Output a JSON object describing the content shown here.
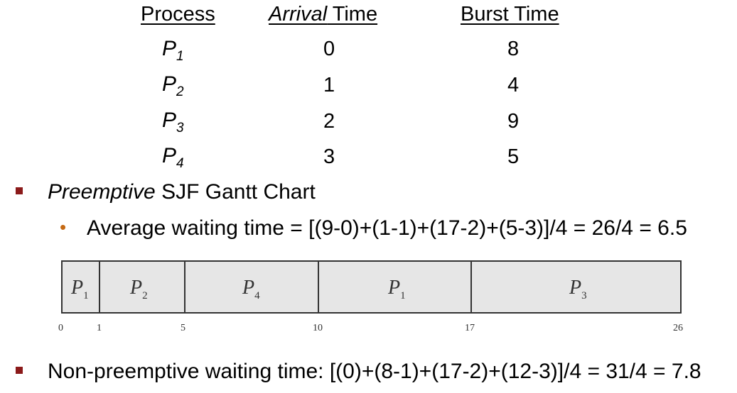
{
  "table": {
    "headers": {
      "process": "Process",
      "arrival_em": "Arrival",
      "arrival_rest": " Time",
      "burst": "Burst Time"
    },
    "rows": [
      {
        "p": "P",
        "sub": "1",
        "arrival": "0",
        "burst": "8"
      },
      {
        "p": "P",
        "sub": "2",
        "arrival": "1",
        "burst": "4"
      },
      {
        "p": "P",
        "sub": "3",
        "arrival": "2",
        "burst": "9"
      },
      {
        "p": "P",
        "sub": "4",
        "arrival": "3",
        "burst": "5"
      }
    ]
  },
  "bullet1": {
    "em": "Preemptive",
    "rest": " SJF Gantt Chart"
  },
  "sub_bullet": "Average waiting time = [(9-0)+(1-1)+(17-2)+(5-3)]/4 = 26/4 = 6.5",
  "gantt": {
    "segments": [
      {
        "p": "P",
        "sub": "1",
        "start": 0,
        "end": 1
      },
      {
        "p": "P",
        "sub": "2",
        "start": 1,
        "end": 5
      },
      {
        "p": "P",
        "sub": "4",
        "start": 5,
        "end": 10
      },
      {
        "p": "P",
        "sub": "1",
        "start": 10,
        "end": 17
      },
      {
        "p": "P",
        "sub": "3",
        "start": 17,
        "end": 26
      }
    ],
    "ticks": [
      "0",
      "1",
      "5",
      "10",
      "17",
      "26"
    ]
  },
  "bullet2": "Non-preemptive waiting time: [(0)+(8-1)+(17-2)+(12-3)]/4 = 31/4 = 7.8",
  "colors": {
    "square_bullet": "#8b1a1a",
    "round_bullet": "#c56a14",
    "gantt_fill": "#e6e6e6"
  }
}
